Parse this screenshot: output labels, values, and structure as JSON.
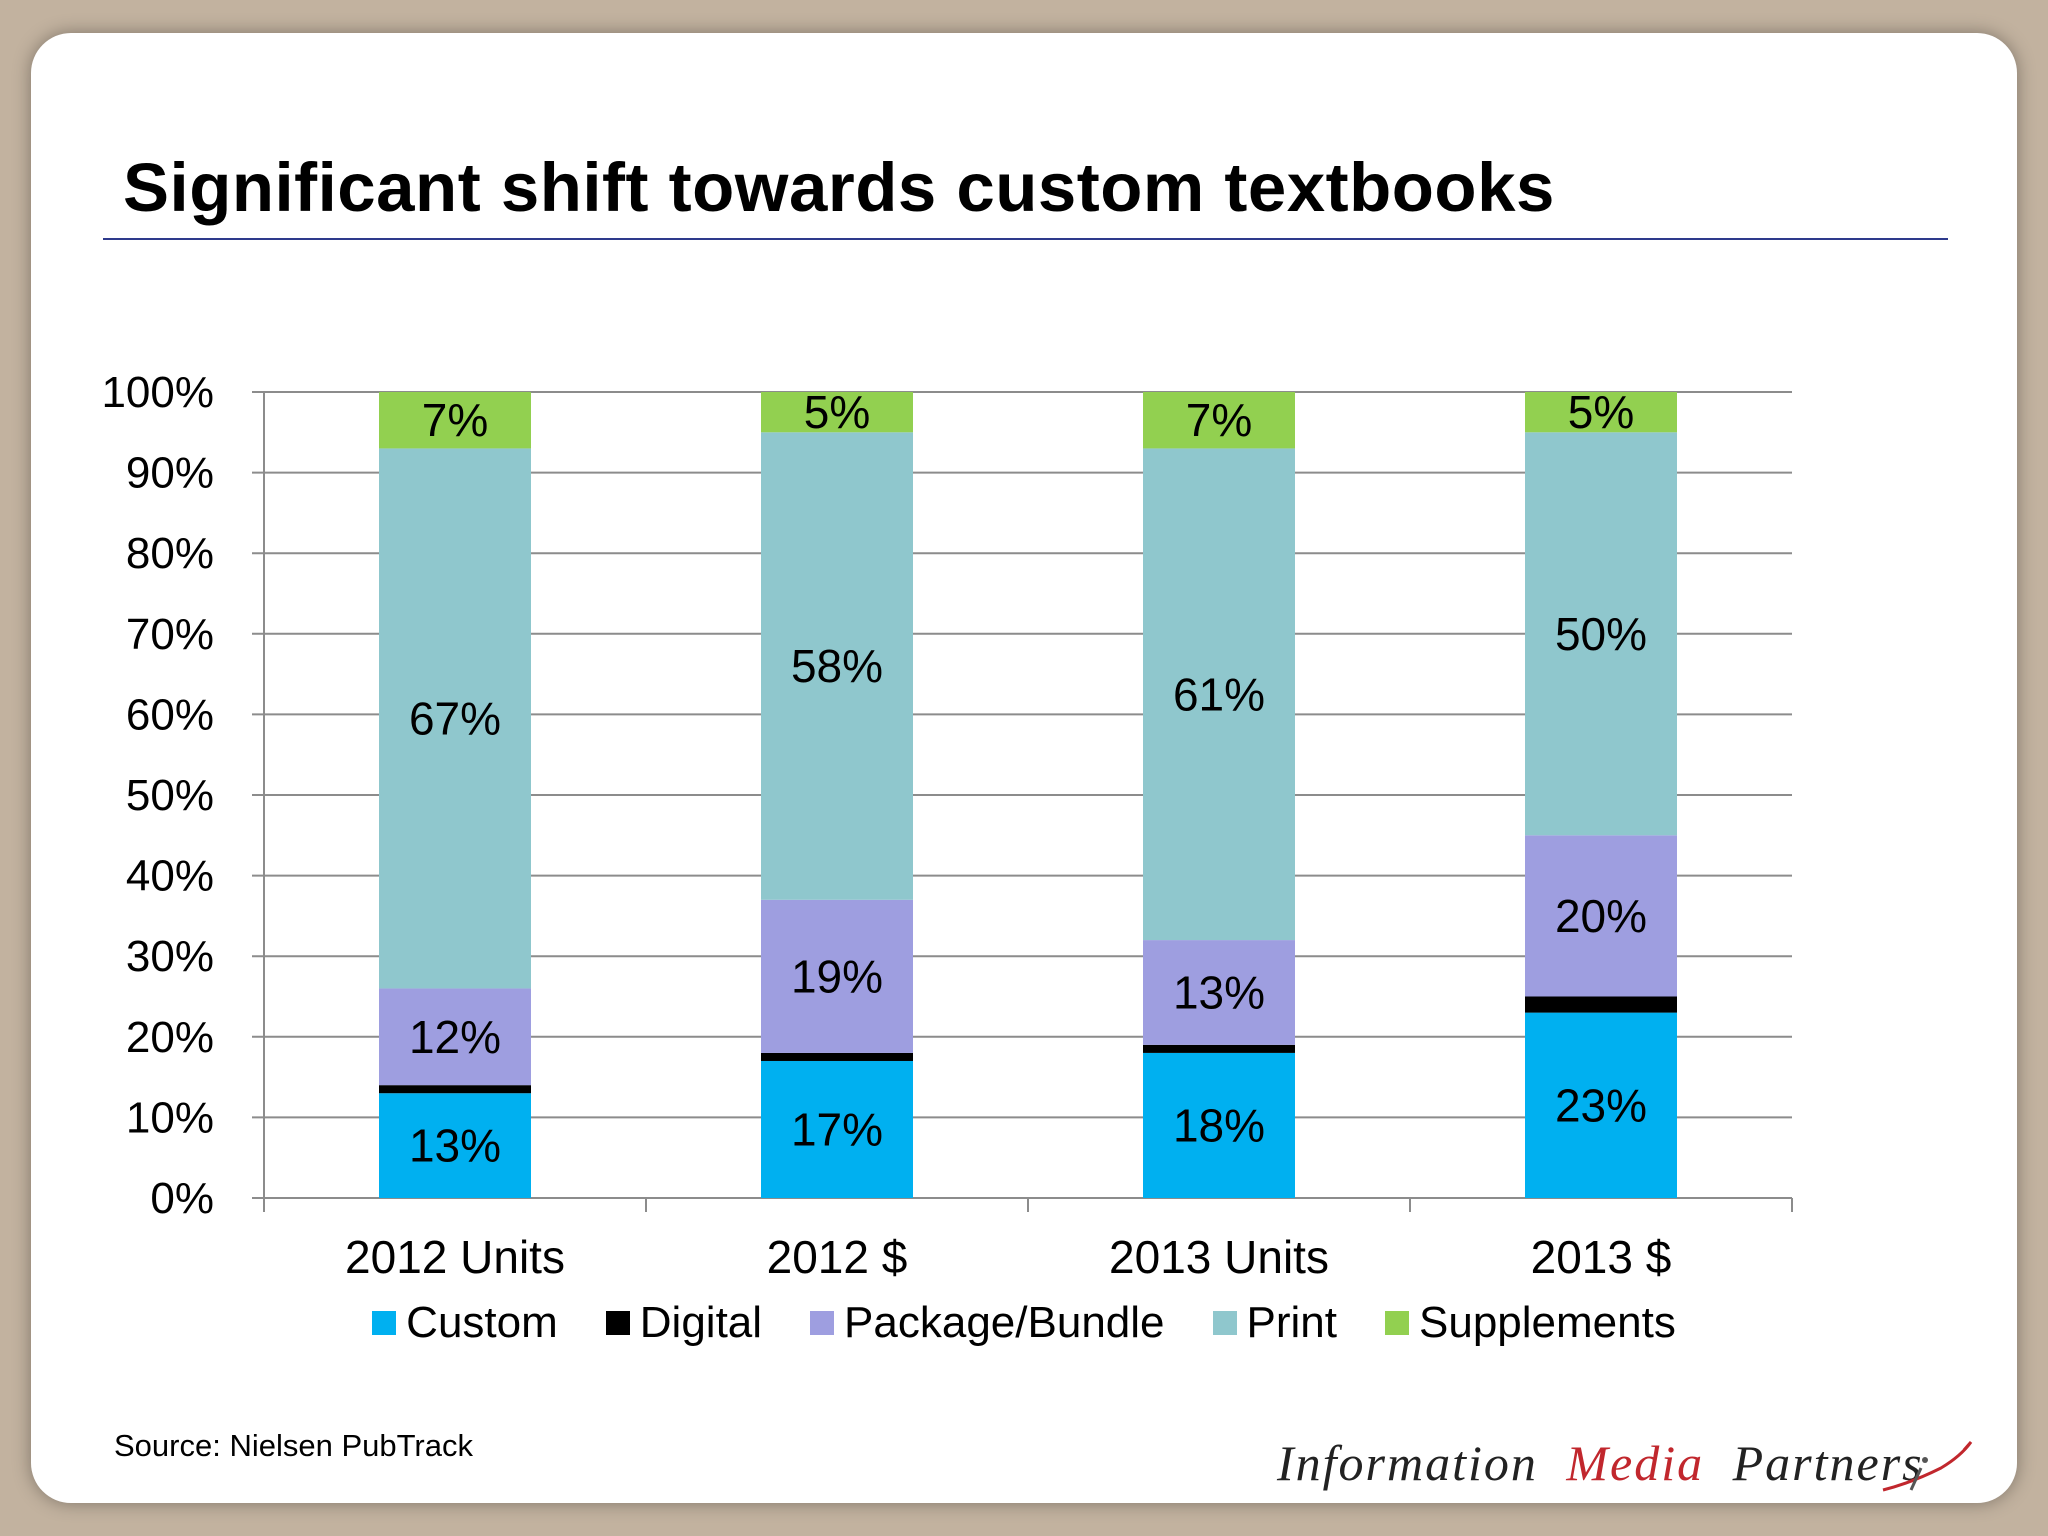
{
  "title": "Significant shift towards custom textbooks",
  "source": "Source: Nielsen PubTrack",
  "logo": {
    "part1": "Information",
    "part2": "Media",
    "part3": "Partners",
    "accent_color": "#c1272d"
  },
  "chart_data": {
    "type": "bar",
    "stacked": true,
    "title": "Significant shift towards custom textbooks",
    "categories": [
      "2012 Units",
      "2012 $",
      "2013 Units",
      "2013 $"
    ],
    "yticks": [
      "0%",
      "10%",
      "20%",
      "30%",
      "40%",
      "50%",
      "60%",
      "70%",
      "80%",
      "90%",
      "100%"
    ],
    "ylim": [
      0,
      100
    ],
    "grid": true,
    "legend_position": "bottom",
    "series": [
      {
        "name": "Custom",
        "color": "#00b0f0",
        "values": [
          13,
          17,
          18,
          23
        ],
        "labels": [
          "13%",
          "17%",
          "18%",
          "23%"
        ]
      },
      {
        "name": "Digital",
        "color": "#000000",
        "values": [
          1,
          1,
          1,
          2
        ],
        "labels": [
          "",
          "",
          "",
          ""
        ]
      },
      {
        "name": "Package/Bundle",
        "color": "#9e9ee0",
        "values": [
          12,
          19,
          13,
          20
        ],
        "labels": [
          "12%",
          "19%",
          "13%",
          "20%"
        ]
      },
      {
        "name": "Print",
        "color": "#8fc7cd",
        "values": [
          67,
          58,
          61,
          50
        ],
        "labels": [
          "67%",
          "58%",
          "61%",
          "50%"
        ]
      },
      {
        "name": "Supplements",
        "color": "#92d050",
        "values": [
          7,
          5,
          7,
          5
        ],
        "labels": [
          "7%",
          "5%",
          "7%",
          "5%"
        ]
      }
    ]
  }
}
